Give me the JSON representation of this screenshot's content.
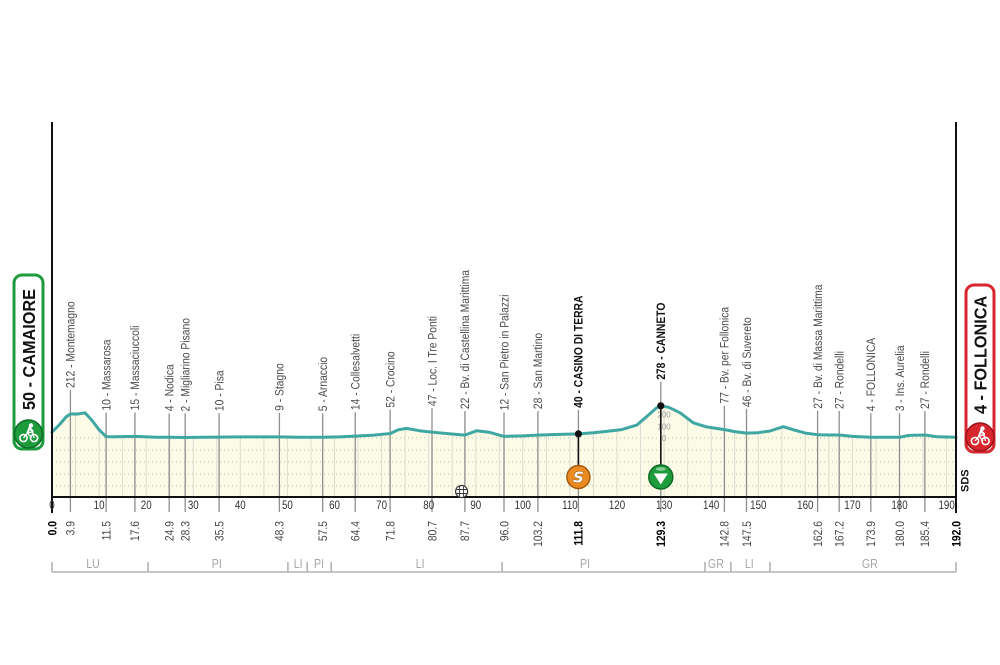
{
  "chart_data": {
    "type": "area",
    "title": "",
    "xlabel": "",
    "ylabel": "",
    "x_unit": "km",
    "y_unit": "m",
    "xlim": [
      0,
      192
    ],
    "ylim": [
      0,
      300
    ],
    "grid": true,
    "legend": "none",
    "x_ticks": [
      0,
      10,
      20,
      30,
      40,
      50,
      60,
      70,
      80,
      90,
      100,
      110,
      120,
      130,
      140,
      150,
      160,
      170,
      180,
      190
    ],
    "elevation_scale": {
      "labels": [
        "200",
        "100",
        "0"
      ],
      "values": [
        200,
        100,
        0
      ],
      "at_km": 130
    },
    "profile": [
      [
        0,
        50
      ],
      [
        1.5,
        110
      ],
      [
        3.0,
        180
      ],
      [
        3.9,
        205
      ],
      [
        5.5,
        205
      ],
      [
        7.0,
        215
      ],
      [
        8.5,
        150
      ],
      [
        10,
        70
      ],
      [
        11.5,
        12
      ],
      [
        13,
        10
      ],
      [
        15,
        12
      ],
      [
        17.6,
        14
      ],
      [
        19,
        12
      ],
      [
        22,
        7
      ],
      [
        24.9,
        6
      ],
      [
        28.3,
        4
      ],
      [
        32,
        6
      ],
      [
        35.5,
        8
      ],
      [
        40,
        9
      ],
      [
        45,
        9
      ],
      [
        48.3,
        9
      ],
      [
        52,
        6
      ],
      [
        57.5,
        6
      ],
      [
        61,
        9
      ],
      [
        64.4,
        16
      ],
      [
        68,
        24
      ],
      [
        71.8,
        38
      ],
      [
        73.5,
        70
      ],
      [
        75.3,
        82
      ],
      [
        78,
        62
      ],
      [
        80.7,
        50
      ],
      [
        84,
        38
      ],
      [
        87.7,
        25
      ],
      [
        90.2,
        62
      ],
      [
        93,
        48
      ],
      [
        96,
        14
      ],
      [
        100,
        18
      ],
      [
        103.2,
        25
      ],
      [
        107,
        30
      ],
      [
        111.8,
        35
      ],
      [
        115,
        45
      ],
      [
        118,
        58
      ],
      [
        121,
        72
      ],
      [
        124.2,
        110
      ],
      [
        126.5,
        190
      ],
      [
        128.3,
        255
      ],
      [
        129.3,
        275
      ],
      [
        131,
        262
      ],
      [
        133.4,
        215
      ],
      [
        136.2,
        130
      ],
      [
        139,
        95
      ],
      [
        142.8,
        72
      ],
      [
        145,
        55
      ],
      [
        147.5,
        42
      ],
      [
        150,
        45
      ],
      [
        152.5,
        60
      ],
      [
        155.3,
        97
      ],
      [
        157.5,
        70
      ],
      [
        160,
        42
      ],
      [
        162.6,
        28
      ],
      [
        165,
        26
      ],
      [
        167.2,
        26
      ],
      [
        170,
        14
      ],
      [
        173.9,
        7
      ],
      [
        177,
        6
      ],
      [
        180,
        6
      ],
      [
        182,
        22
      ],
      [
        185.4,
        26
      ],
      [
        188,
        10
      ],
      [
        192,
        6
      ]
    ],
    "waypoints": [
      {
        "km": 3.9,
        "km_label": "3.9",
        "elevation": 212,
        "name": "Montemagno",
        "label": "212 - Montemagno",
        "bold": false
      },
      {
        "km": 11.5,
        "km_label": "11.5",
        "elevation": 10,
        "name": "Massarosa",
        "label": "10 - Massarosa",
        "bold": false
      },
      {
        "km": 17.6,
        "km_label": "17.6",
        "elevation": 15,
        "name": "Massaciuccoli",
        "label": "15 - Massaciuccoli",
        "bold": false
      },
      {
        "km": 24.9,
        "km_label": "24.9",
        "elevation": 4,
        "name": "Nodica",
        "label": "4 - Nodica",
        "bold": false
      },
      {
        "km": 28.3,
        "km_label": "28.3",
        "elevation": 2,
        "name": "Migliarino Pisano",
        "label": "2 - Migliarino Pisano",
        "bold": false
      },
      {
        "km": 35.5,
        "km_label": "35.5",
        "elevation": 10,
        "name": "Pisa",
        "label": "10 - Pisa",
        "bold": false
      },
      {
        "km": 48.3,
        "km_label": "48.3",
        "elevation": 9,
        "name": "Stagno",
        "label": "9 - Stagno",
        "bold": false
      },
      {
        "km": 57.5,
        "km_label": "57.5",
        "elevation": 5,
        "name": "Arnaccio",
        "label": "5 - Arnaccio",
        "bold": false
      },
      {
        "km": 64.4,
        "km_label": "64.4",
        "elevation": 14,
        "name": "Collesalvetti",
        "label": "14 - Collesalvetti",
        "bold": false
      },
      {
        "km": 71.8,
        "km_label": "71.8",
        "elevation": 52,
        "name": "Crocino",
        "label": "52 - Crocino",
        "bold": false
      },
      {
        "km": 80.7,
        "km_label": "80.7",
        "elevation": 47,
        "name": "Loc. I Tre Ponti",
        "label": "47 - Loc. I Tre Ponti",
        "bold": false
      },
      {
        "km": 87.7,
        "km_label": "87.7",
        "elevation": 22,
        "name": "Bv. di Castellina Marittima",
        "label": "22 - Bv. di Castellina Marittima",
        "bold": false
      },
      {
        "km": 96.0,
        "km_label": "96.0",
        "elevation": 12,
        "name": "San Pietro in Palazzi",
        "label": "12 - San Pietro in Palazzi",
        "bold": false
      },
      {
        "km": 103.2,
        "km_label": "103.2",
        "elevation": 28,
        "name": "San Martino",
        "label": "28 - San Martino",
        "bold": false
      },
      {
        "km": 111.8,
        "km_label": "111.8",
        "elevation": 40,
        "name": "CASINO DI TERRA",
        "label": "40 - CASINO DI TERRA",
        "bold": true,
        "marker": "sprint"
      },
      {
        "km": 129.3,
        "km_label": "129.3",
        "elevation": 278,
        "name": "CANNETO",
        "label": "278 - CANNETO",
        "bold": true,
        "marker": "kom"
      },
      {
        "km": 142.8,
        "km_label": "142.8",
        "elevation": 77,
        "name": "Bv. per Follonica",
        "label": "77 - Bv. per Follonica",
        "bold": false
      },
      {
        "km": 147.5,
        "km_label": "147.5",
        "elevation": 46,
        "name": "Bv. di Suvereto",
        "label": "46 - Bv. di Suvereto",
        "bold": false
      },
      {
        "km": 162.6,
        "km_label": "162.6",
        "elevation": 27,
        "name": "Bv. di Massa Marittima",
        "label": "27 - Bv. di Massa Marittima",
        "bold": false
      },
      {
        "km": 167.2,
        "km_label": "167.2",
        "elevation": 27,
        "name": "Rondelli",
        "label": "27 - Rondelli",
        "bold": false
      },
      {
        "km": 173.9,
        "km_label": "173.9",
        "elevation": 4,
        "name": "FOLLONICA",
        "label": "4 - FOLLONICA",
        "bold": false
      },
      {
        "km": 180.0,
        "km_label": "180.0",
        "elevation": 3,
        "name": "Ins. Aurelia",
        "label": "3 - Ins. Aurelia",
        "bold": false
      },
      {
        "km": 185.4,
        "km_label": "185.4",
        "elevation": 27,
        "name": "Rondelli",
        "label": "27 - Rondelli",
        "bold": false
      }
    ],
    "regions": [
      {
        "code": "LU",
        "from_km": 0,
        "to_km": 20.4,
        "label_km": 8.7
      },
      {
        "code": "PI",
        "from_km": 20.4,
        "to_km": 50.1,
        "label_km": 35.0
      },
      {
        "code": "LI",
        "from_km": 50.1,
        "to_km": 54.2,
        "label_km": 52.3
      },
      {
        "code": "PI",
        "from_km": 54.2,
        "to_km": 59.3,
        "label_km": 56.7
      },
      {
        "code": "LI",
        "from_km": 59.3,
        "to_km": 95.6,
        "label_km": 78.2
      },
      {
        "code": "PI",
        "from_km": 95.6,
        "to_km": 138.7,
        "label_km": 113.2
      },
      {
        "code": "GR",
        "from_km": 138.7,
        "to_km": 144.2,
        "label_km": 141.0
      },
      {
        "code": "LI",
        "from_km": 144.2,
        "to_km": 152.5,
        "label_km": 148.1
      },
      {
        "code": "GR",
        "from_km": 152.5,
        "to_km": 192,
        "label_km": 173.7
      }
    ],
    "start": {
      "km": 0,
      "km_label": "0.0",
      "elevation": 50,
      "name": "CAMAIORE",
      "label": "50 - CAMAIORE"
    },
    "finish": {
      "km": 192,
      "km_label": "192.0",
      "elevation": 4,
      "name": "FOLLONICA",
      "label": "4 - FOLLONICA"
    },
    "markers": [
      {
        "type": "sprint",
        "km": 111.8,
        "symbol": "S"
      },
      {
        "type": "kom",
        "km": 129.3,
        "symbol": "▼"
      },
      {
        "type": "level-crossing",
        "km": 87.0
      }
    ],
    "road_note": "SDS"
  },
  "colors": {
    "profile_line": "#3fa7a2",
    "profile_fill": "#fcfbe8",
    "grid_dots": "#c2c2a6",
    "grid_light": "#dcdcd2",
    "waypoint_line": "#8e8e8e",
    "axis": "#111111",
    "region_line": "#b3b3b3",
    "start_green": "#1e9b3c",
    "finish_red": "#d7262d",
    "sprint_orange": "#ea8a21",
    "kom_green": "#1e9b3c"
  }
}
